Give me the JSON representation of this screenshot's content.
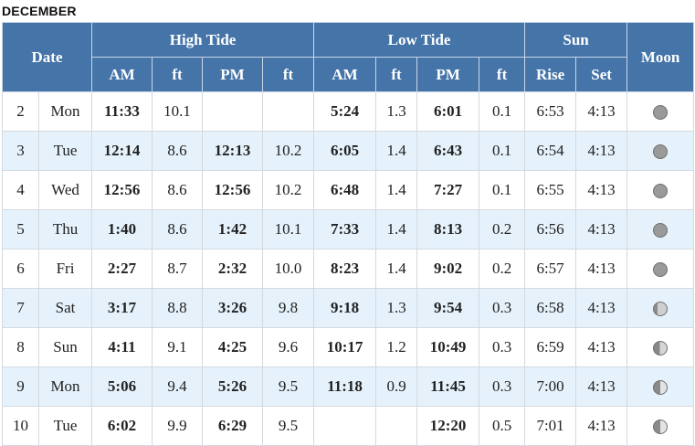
{
  "month": "DECEMBER",
  "headers": {
    "date": "Date",
    "high_tide": "High Tide",
    "low_tide": "Low Tide",
    "sun": "Sun",
    "moon": "Moon",
    "am": "AM",
    "pm": "PM",
    "ft": "ft",
    "rise": "Rise",
    "set": "Set"
  },
  "rows": [
    {
      "date": "2",
      "day": "Mon",
      "hi_am": "11:33",
      "hi_am_ft": "10.1",
      "hi_pm": "",
      "hi_pm_ft": "",
      "lo_am": "5:24",
      "lo_am_ft": "1.3",
      "lo_pm": "6:01",
      "lo_pm_ft": "0.1",
      "rise": "6:53",
      "set": "4:13",
      "moon": "moon-icon"
    },
    {
      "date": "3",
      "day": "Tue",
      "hi_am": "12:14",
      "hi_am_ft": "8.6",
      "hi_pm": "12:13",
      "hi_pm_ft": "10.2",
      "lo_am": "6:05",
      "lo_am_ft": "1.4",
      "lo_pm": "6:43",
      "lo_pm_ft": "0.1",
      "rise": "6:54",
      "set": "4:13",
      "moon": "moon-icon"
    },
    {
      "date": "4",
      "day": "Wed",
      "hi_am": "12:56",
      "hi_am_ft": "8.6",
      "hi_pm": "12:56",
      "hi_pm_ft": "10.2",
      "lo_am": "6:48",
      "lo_am_ft": "1.4",
      "lo_pm": "7:27",
      "lo_pm_ft": "0.1",
      "rise": "6:55",
      "set": "4:13",
      "moon": "moon-icon"
    },
    {
      "date": "5",
      "day": "Thu",
      "hi_am": "1:40",
      "hi_am_ft": "8.6",
      "hi_pm": "1:42",
      "hi_pm_ft": "10.1",
      "lo_am": "7:33",
      "lo_am_ft": "1.4",
      "lo_pm": "8:13",
      "lo_pm_ft": "0.2",
      "rise": "6:56",
      "set": "4:13",
      "moon": "moon-icon"
    },
    {
      "date": "6",
      "day": "Fri",
      "hi_am": "2:27",
      "hi_am_ft": "8.7",
      "hi_pm": "2:32",
      "hi_pm_ft": "10.0",
      "lo_am": "8:23",
      "lo_am_ft": "1.4",
      "lo_pm": "9:02",
      "lo_pm_ft": "0.2",
      "rise": "6:57",
      "set": "4:13",
      "moon": "moon-icon"
    },
    {
      "date": "7",
      "day": "Sat",
      "hi_am": "3:17",
      "hi_am_ft": "8.8",
      "hi_pm": "3:26",
      "hi_pm_ft": "9.8",
      "lo_am": "9:18",
      "lo_am_ft": "1.3",
      "lo_pm": "9:54",
      "lo_pm_ft": "0.3",
      "rise": "6:58",
      "set": "4:13",
      "moon": "moon-icon"
    },
    {
      "date": "8",
      "day": "Sun",
      "hi_am": "4:11",
      "hi_am_ft": "9.1",
      "hi_pm": "4:25",
      "hi_pm_ft": "9.6",
      "lo_am": "10:17",
      "lo_am_ft": "1.2",
      "lo_pm": "10:49",
      "lo_pm_ft": "0.3",
      "rise": "6:59",
      "set": "4:13",
      "moon": "moon-icon"
    },
    {
      "date": "9",
      "day": "Mon",
      "hi_am": "5:06",
      "hi_am_ft": "9.4",
      "hi_pm": "5:26",
      "hi_pm_ft": "9.5",
      "lo_am": "11:18",
      "lo_am_ft": "0.9",
      "lo_pm": "11:45",
      "lo_pm_ft": "0.3",
      "rise": "7:00",
      "set": "4:13",
      "moon": "moon-icon"
    },
    {
      "date": "10",
      "day": "Tue",
      "hi_am": "6:02",
      "hi_am_ft": "9.9",
      "hi_pm": "6:29",
      "hi_pm_ft": "9.5",
      "lo_am": "",
      "lo_am_ft": "",
      "lo_pm": "12:20",
      "lo_pm_ft": "0.5",
      "rise": "7:01",
      "set": "4:13",
      "moon": "moon-icon"
    }
  ]
}
